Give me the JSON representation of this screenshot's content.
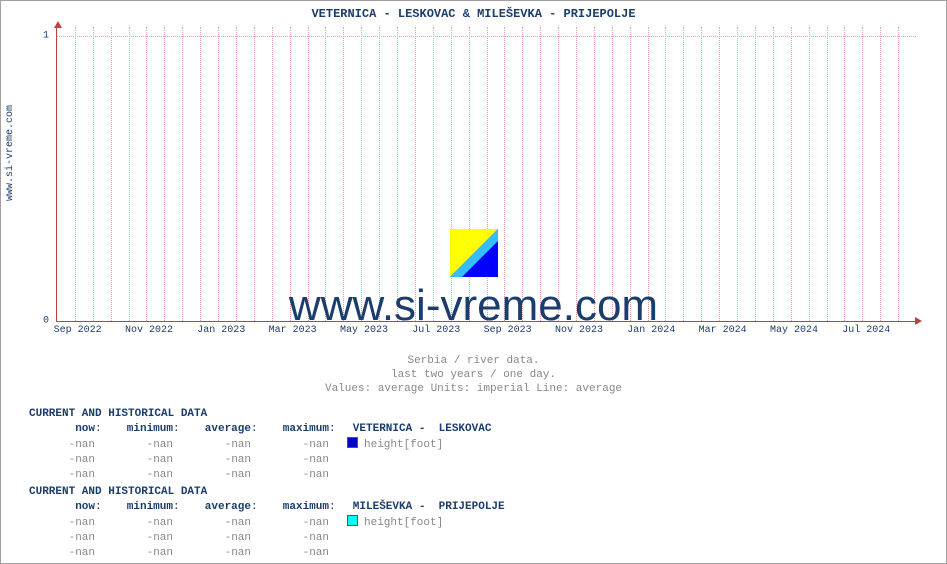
{
  "side_label": "www.si-vreme.com",
  "title": "VETERNICA -  LESKOVAC &  MILEŠEVKA -  PRIJEPOLJE",
  "watermark": {
    "text": "www.si-vreme.com",
    "logo_colors": {
      "tl": "#ffff00",
      "br": "#0000ff",
      "diag": "#33bfff"
    }
  },
  "chart": {
    "type": "line",
    "background_color": "#ffffff",
    "axis_color": "#c04040",
    "grid_color": "#e8a0a0",
    "ylim": [
      0,
      1
    ],
    "ytick_labels": [
      "0",
      "1"
    ],
    "ytick_positions_pct": [
      100,
      3
    ],
    "xtick_labels": [
      "Sep 2022",
      "Nov 2022",
      "Jan 2023",
      "Mar 2023",
      "May 2023",
      "Jul 2023",
      "Sep 2023",
      "Nov 2023",
      "Jan 2024",
      "Mar 2024",
      "May 2024",
      "Jul 2024"
    ],
    "xtick_positions_pct": [
      0,
      8.3,
      16.7,
      25.0,
      33.3,
      41.7,
      50.0,
      58.3,
      66.7,
      75.0,
      83.3,
      91.7
    ],
    "x_minor_count": 48
  },
  "caption": {
    "line1": "Serbia / river data.",
    "line2": "last two years / one day.",
    "line3": "Values: average  Units: imperial  Line: average"
  },
  "columns": {
    "now": "now",
    "min": "minimum",
    "avg": "average",
    "max": "maximum"
  },
  "blocks": [
    {
      "header": "CURRENT AND HISTORICAL DATA",
      "series_name": "VETERNICA -  LESKOVAC",
      "swatch_color": "#0000cc",
      "metric": "height[foot]",
      "rows": [
        {
          "now": "-nan",
          "min": "-nan",
          "avg": "-nan",
          "max": "-nan"
        },
        {
          "now": "-nan",
          "min": "-nan",
          "avg": "-nan",
          "max": "-nan"
        },
        {
          "now": "-nan",
          "min": "-nan",
          "avg": "-nan",
          "max": "-nan"
        }
      ]
    },
    {
      "header": "CURRENT AND HISTORICAL DATA",
      "series_name": "MILEŠEVKA -  PRIJEPOLJE",
      "swatch_color": "#00ffff",
      "metric": "height[foot]",
      "rows": [
        {
          "now": "-nan",
          "min": "-nan",
          "avg": "-nan",
          "max": "-nan"
        },
        {
          "now": "-nan",
          "min": "-nan",
          "avg": "-nan",
          "max": "-nan"
        },
        {
          "now": "-nan",
          "min": "-nan",
          "avg": "-nan",
          "max": "-nan"
        }
      ]
    }
  ]
}
